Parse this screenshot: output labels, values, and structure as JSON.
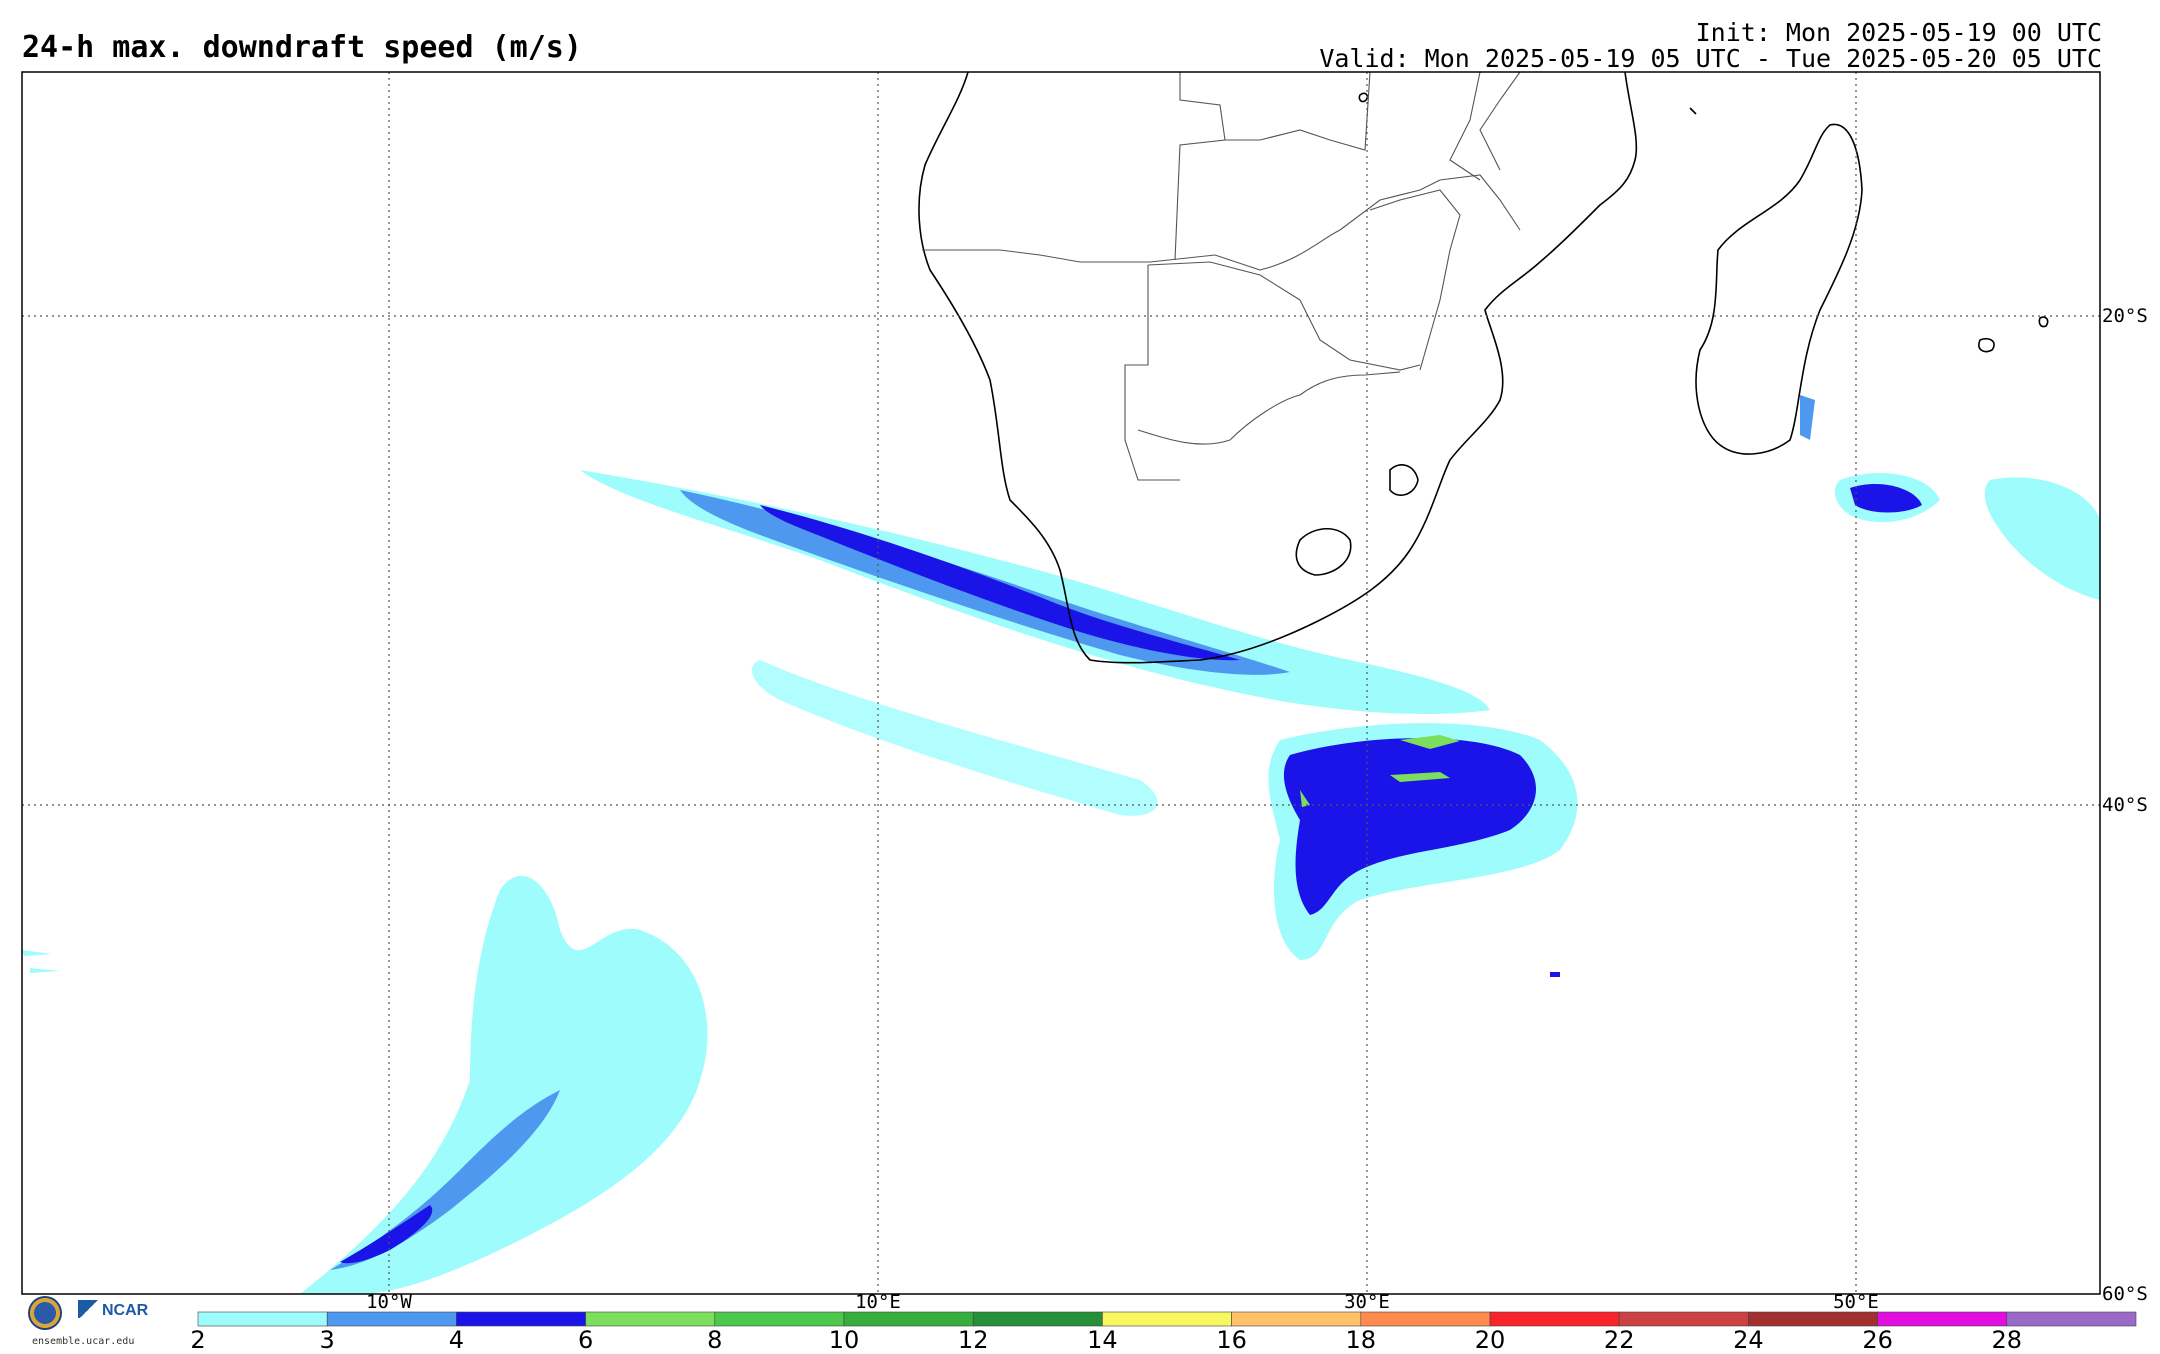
{
  "title": "24-h max. downdraft speed (m/s)",
  "init": "Init: Mon 2025-05-19 00 UTC",
  "valid": "Valid: Mon 2025-05-19 05 UTC - Tue 2025-05-20 05 UTC",
  "lat_labels": [
    "20°S",
    "40°S",
    "60°S"
  ],
  "lon_labels": [
    "10°W",
    "10°E",
    "30°E",
    "50°E"
  ],
  "colorbar": {
    "ticks": [
      "2",
      "3",
      "4",
      "6",
      "8",
      "10",
      "12",
      "14",
      "16",
      "18",
      "20",
      "22",
      "24",
      "26",
      "28"
    ],
    "colors": [
      "#9ffcfc",
      "#4f98f0",
      "#1b14e8",
      "#7cde5c",
      "#4cc84c",
      "#36ae3e",
      "#258f3a",
      "#f8f75f",
      "#ffc26a",
      "#ff8c4e",
      "#f8242a",
      "#cc4242",
      "#a33030",
      "#e20ee0",
      "#9b6ac8"
    ]
  },
  "logo": {
    "nsf": "NSF",
    "ncar": "NCAR",
    "url": "ensemble.ucar.edu"
  }
}
